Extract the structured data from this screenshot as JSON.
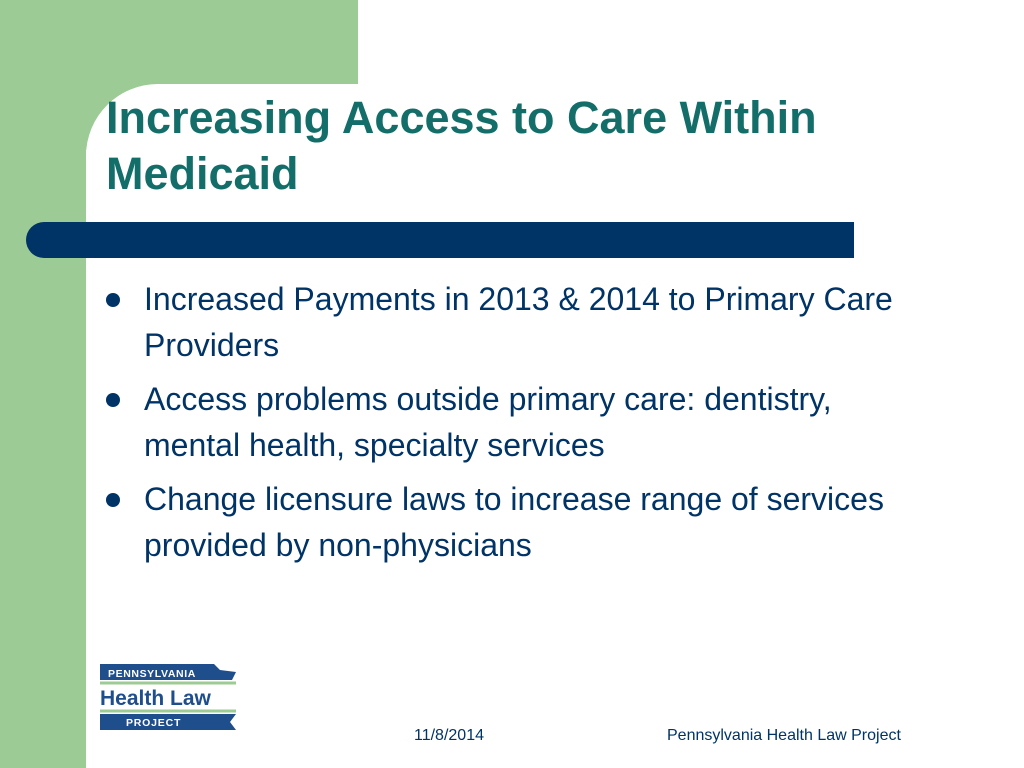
{
  "slide": {
    "title": "Increasing Access to Care Within Medicaid",
    "bullets": [
      {
        "text": "Increased Payments in 2013 & 2014  to Primary Care Providers"
      },
      {
        "text": "Access problems outside primary care: dentistry, mental health, specialty services"
      },
      {
        "text": "Change licensure laws to increase range of services provided by non-physicians"
      }
    ]
  },
  "logo": {
    "line1": "PENNSYLVANIA",
    "line2": "Health Law",
    "line3": "PROJECT"
  },
  "footer": {
    "date": "11/8/2014",
    "organization": "Pennsylvania Health Law Project"
  },
  "colors": {
    "green": "#9ccb95",
    "navy": "#003366",
    "title": "#136e6a"
  }
}
